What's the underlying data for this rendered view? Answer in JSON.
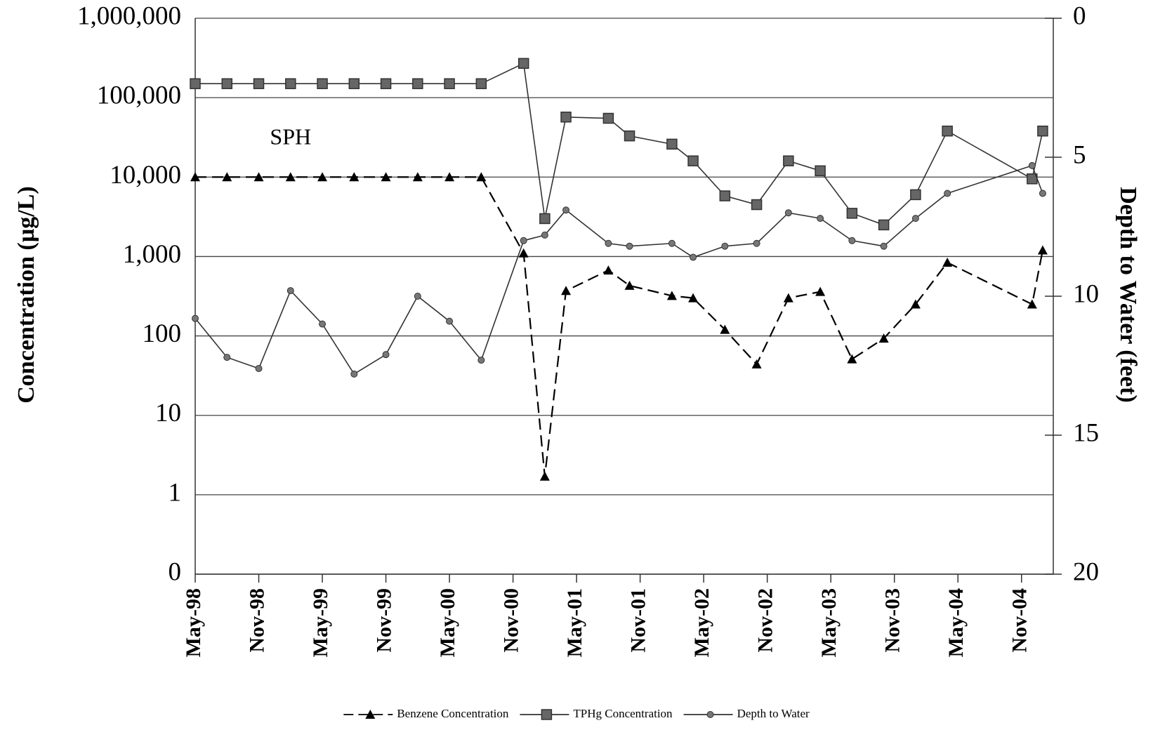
{
  "chart_data": {
    "type": "line",
    "annotations": [
      {
        "text": "SPH",
        "x": "1999-02",
        "y": 30000
      }
    ],
    "y_label": "Concentration (µg/L)",
    "y2_label": "Depth to Water (feet)",
    "log_y": true,
    "y2_inverted": true,
    "grid": true,
    "legend": "bottom",
    "xlim": [
      "1998-05",
      "2005-02"
    ],
    "xticks": [
      {
        "value": "1998-05",
        "label": "May-98"
      },
      {
        "value": "1998-11",
        "label": "Nov-98"
      },
      {
        "value": "1999-05",
        "label": "May-99"
      },
      {
        "value": "1999-11",
        "label": "Nov-99"
      },
      {
        "value": "2000-05",
        "label": "May-00"
      },
      {
        "value": "2000-11",
        "label": "Nov-00"
      },
      {
        "value": "2001-05",
        "label": "May-01"
      },
      {
        "value": "2001-11",
        "label": "Nov-01"
      },
      {
        "value": "2002-05",
        "label": "May-02"
      },
      {
        "value": "2002-11",
        "label": "Nov-02"
      },
      {
        "value": "2003-05",
        "label": "May-03"
      },
      {
        "value": "2003-11",
        "label": "Nov-03"
      },
      {
        "value": "2004-05",
        "label": "May-04"
      },
      {
        "value": "2004-11",
        "label": "Nov-04"
      }
    ],
    "ylim": [
      0.1,
      1000000
    ],
    "yticks": [
      {
        "value": 0.1,
        "label": "0"
      },
      1,
      10,
      100,
      {
        "value": 1000,
        "label": "1,000"
      },
      {
        "value": 10000,
        "label": "10,000"
      },
      {
        "value": 100000,
        "label": "100,000"
      },
      {
        "value": 1000000,
        "label": "1,000,000"
      }
    ],
    "y2lim": [
      0,
      20
    ],
    "y2ticks": [
      0,
      5,
      10,
      15,
      20
    ],
    "x": [
      "1998-05",
      "1998-08",
      "1998-11",
      "1999-02",
      "1999-05",
      "1999-08",
      "1999-11",
      "2000-02",
      "2000-05",
      "2000-08",
      "2000-12",
      "2001-02",
      "2001-04",
      "2001-08",
      "2001-10",
      "2002-02",
      "2002-04",
      "2002-07",
      "2002-10",
      "2003-01",
      "2003-04",
      "2003-07",
      "2003-10",
      "2004-01",
      "2004-04",
      "2004-12",
      "2005-01"
    ],
    "series": [
      {
        "name": "Benzene Concentration",
        "color": "#000000",
        "marker": "triangle",
        "line_style": "dashed",
        "values": [
          10000,
          10000,
          10000,
          10000,
          10000,
          10000,
          10000,
          10000,
          10000,
          10000,
          1100,
          1.7,
          370,
          670,
          430,
          320,
          300,
          120,
          44,
          300,
          360,
          51,
          93,
          250,
          840,
          250,
          1200
        ]
      },
      {
        "name": "TPHg Concentration",
        "color": "#333333",
        "marker": "square",
        "line_style": "solid",
        "values": [
          150000,
          150000,
          150000,
          150000,
          150000,
          150000,
          150000,
          150000,
          150000,
          150000,
          270000,
          3000,
          57000,
          55000,
          33000,
          26000,
          16000,
          5800,
          4500,
          16000,
          12000,
          3500,
          2500,
          6000,
          38000,
          9500,
          38000
        ]
      },
      {
        "name": "Depth to Water",
        "color": "#333333",
        "marker": "circle",
        "line_style": "solid",
        "axis": "y2",
        "values": [
          10.8,
          12.2,
          12.6,
          9.8,
          11.0,
          12.8,
          12.1,
          10.0,
          10.9,
          12.3,
          8.0,
          7.8,
          6.9,
          8.1,
          8.2,
          8.1,
          8.6,
          8.2,
          8.1,
          7.0,
          7.2,
          8.0,
          8.2,
          7.2,
          6.3,
          5.3,
          6.3
        ]
      }
    ]
  }
}
